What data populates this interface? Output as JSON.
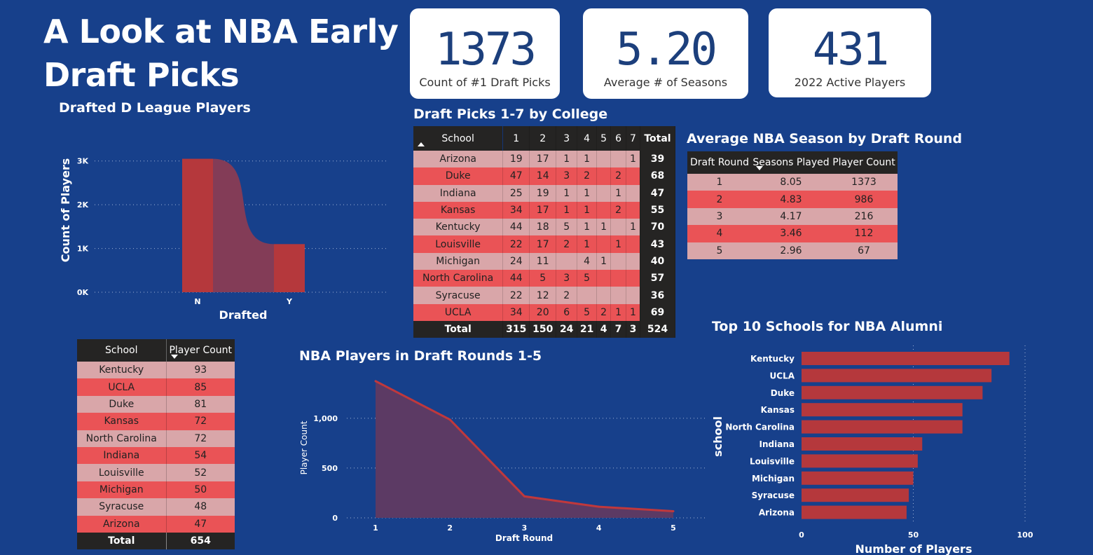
{
  "title": "A Look at NBA Early Draft Picks",
  "kpis": [
    {
      "value": "1373",
      "label": "Count of #1 Draft Picks"
    },
    {
      "value": "5.20",
      "label": "Average # of Seasons"
    },
    {
      "value": "431",
      "label": "2022 Active Players"
    }
  ],
  "chart_data": [
    {
      "type": "bar",
      "title": "Drafted D League Players",
      "xlabel": "Drafted",
      "ylabel": "Count of Players",
      "categories": [
        "N",
        "Y"
      ],
      "values": [
        3050,
        1100
      ],
      "yticks": [
        "0K",
        "1K",
        "2K",
        "3K"
      ],
      "ylim": [
        0,
        3300
      ],
      "colors": {
        "bar": "#b5383c",
        "ribbon": "#833c57"
      },
      "grid": true
    },
    {
      "type": "area",
      "title": "NBA Players in Draft Rounds 1-5",
      "xlabel": "Draft Round",
      "ylabel": "Player Count",
      "x": [
        1,
        2,
        3,
        4,
        5
      ],
      "values": [
        1373,
        986,
        216,
        112,
        67
      ],
      "yticks": [
        "0",
        "500",
        "1,000"
      ],
      "ylim": [
        0,
        1400
      ],
      "colors": {
        "line": "#c0383c",
        "fill": "#5c3a64"
      },
      "grid": true
    },
    {
      "type": "bar",
      "orientation": "horizontal",
      "title": "Top 10 Schools for NBA Alumni",
      "xlabel": "Number of Players",
      "ylabel": "school",
      "categories": [
        "Kentucky",
        "UCLA",
        "Duke",
        "Kansas",
        "North Carolina",
        "Indiana",
        "Louisville",
        "Michigan",
        "Syracuse",
        "Arizona"
      ],
      "values": [
        93,
        85,
        81,
        72,
        72,
        54,
        52,
        50,
        48,
        47
      ],
      "xticks": [
        "0",
        "50",
        "100"
      ],
      "xlim": [
        0,
        100
      ],
      "colors": {
        "bar": "#b5383c"
      },
      "grid": true
    },
    {
      "type": "table",
      "title": "Draft Picks 1-7 by College",
      "columns": [
        "School",
        "1",
        "2",
        "3",
        "4",
        "5",
        "6",
        "7",
        "Total"
      ],
      "rows": [
        [
          "Arizona",
          "19",
          "17",
          "1",
          "1",
          "",
          "",
          "1",
          "39"
        ],
        [
          "Duke",
          "47",
          "14",
          "3",
          "2",
          "",
          "2",
          "",
          "68"
        ],
        [
          "Indiana",
          "25",
          "19",
          "1",
          "1",
          "",
          "1",
          "",
          "47"
        ],
        [
          "Kansas",
          "34",
          "17",
          "1",
          "1",
          "",
          "2",
          "",
          "55"
        ],
        [
          "Kentucky",
          "44",
          "18",
          "5",
          "1",
          "1",
          "",
          "1",
          "70"
        ],
        [
          "Louisville",
          "22",
          "17",
          "2",
          "1",
          "",
          "1",
          "",
          "43"
        ],
        [
          "Michigan",
          "24",
          "11",
          "",
          "4",
          "1",
          "",
          "",
          "40"
        ],
        [
          "North Carolina",
          "44",
          "5",
          "3",
          "5",
          "",
          "",
          "",
          "57"
        ],
        [
          "Syracuse",
          "22",
          "12",
          "2",
          "",
          "",
          "",
          "",
          "36"
        ],
        [
          "UCLA",
          "34",
          "20",
          "6",
          "5",
          "2",
          "1",
          "1",
          "69"
        ]
      ],
      "total": [
        "Total",
        "315",
        "150",
        "24",
        "21",
        "4",
        "7",
        "3",
        "524"
      ]
    },
    {
      "type": "table",
      "title": "Average NBA Season by Draft Round",
      "columns": [
        "Draft Round",
        "Seasons Played",
        "Player Count"
      ],
      "rows": [
        [
          "1",
          "8.05",
          "1373"
        ],
        [
          "2",
          "4.83",
          "986"
        ],
        [
          "3",
          "4.17",
          "216"
        ],
        [
          "4",
          "3.46",
          "112"
        ],
        [
          "5",
          "2.96",
          "67"
        ]
      ]
    },
    {
      "type": "table",
      "columns": [
        "School",
        "Player Count"
      ],
      "rows": [
        [
          "Kentucky",
          "93"
        ],
        [
          "UCLA",
          "85"
        ],
        [
          "Duke",
          "81"
        ],
        [
          "Kansas",
          "72"
        ],
        [
          "North Carolina",
          "72"
        ],
        [
          "Indiana",
          "54"
        ],
        [
          "Louisville",
          "52"
        ],
        [
          "Michigan",
          "50"
        ],
        [
          "Syracuse",
          "48"
        ],
        [
          "Arizona",
          "47"
        ]
      ],
      "total": [
        "Total",
        "654"
      ]
    }
  ]
}
